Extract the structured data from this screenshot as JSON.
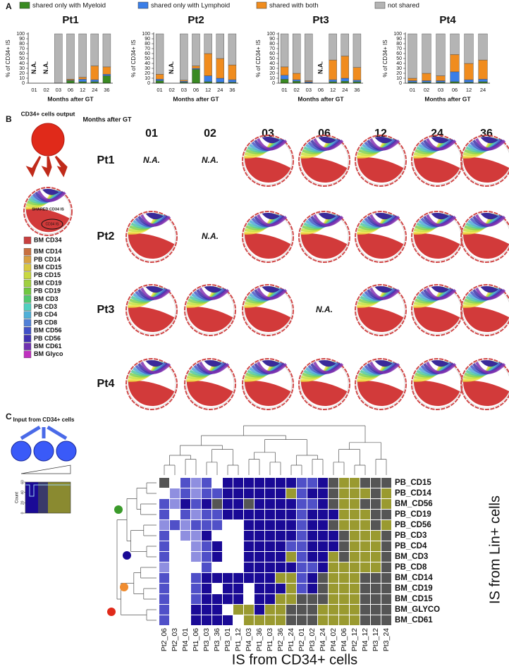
{
  "panel_labels": [
    "A",
    "B",
    "C"
  ],
  "chart_data": [
    {
      "type": "bar",
      "title": "Pt1",
      "ylabel": "% of CD34+ IS",
      "xlabel": "Months after GT",
      "na_label": "N.A.",
      "categories": [
        "01",
        "02",
        "03",
        "06",
        "12",
        "24",
        "36"
      ],
      "ylim": [
        0,
        100
      ],
      "yticks": [
        0,
        10,
        20,
        30,
        40,
        50,
        60,
        70,
        80,
        90,
        100
      ],
      "series": [
        {
          "name": "shared only with Myeloid",
          "color": "#3a8a22",
          "values": [
            null,
            null,
            0,
            5,
            3,
            3,
            15
          ]
        },
        {
          "name": "shared only with Lymphoid",
          "color": "#3a7ee8",
          "values": [
            null,
            null,
            0,
            1,
            5,
            4,
            3
          ]
        },
        {
          "name": "shared with both",
          "color": "#f08c1e",
          "values": [
            null,
            null,
            0,
            2,
            4,
            28,
            15
          ]
        },
        {
          "name": "not shared",
          "color": "#b4b4b4",
          "values": [
            null,
            null,
            100,
            92,
            88,
            65,
            67
          ]
        }
      ]
    },
    {
      "type": "bar",
      "title": "Pt2",
      "ylabel": "% of CD34+ IS",
      "xlabel": "Months after GT",
      "na_label": "N.A.",
      "categories": [
        "01",
        "02",
        "03",
        "06",
        "12",
        "24",
        "36"
      ],
      "ylim": [
        0,
        100
      ],
      "yticks": [
        0,
        10,
        20,
        30,
        40,
        50,
        60,
        70,
        80,
        90,
        100
      ],
      "series": [
        {
          "name": "shared only with Myeloid",
          "color": "#3a8a22",
          "values": [
            5,
            null,
            2,
            28,
            3,
            2,
            2
          ]
        },
        {
          "name": "shared only with Lymphoid",
          "color": "#3a7ee8",
          "values": [
            3,
            null,
            2,
            2,
            12,
            8,
            5
          ]
        },
        {
          "name": "shared with both",
          "color": "#f08c1e",
          "values": [
            10,
            null,
            2,
            5,
            45,
            40,
            30
          ]
        },
        {
          "name": "not shared",
          "color": "#b4b4b4",
          "values": [
            82,
            null,
            94,
            65,
            40,
            50,
            63
          ]
        }
      ]
    },
    {
      "type": "bar",
      "title": "Pt3",
      "ylabel": "% of CD34+ IS",
      "xlabel": "Months after GT",
      "na_label": "N.A.",
      "categories": [
        "01",
        "02",
        "03",
        "06",
        "12",
        "24",
        "36"
      ],
      "ylim": [
        0,
        100
      ],
      "yticks": [
        0,
        10,
        20,
        30,
        40,
        50,
        60,
        70,
        80,
        90,
        100
      ],
      "series": [
        {
          "name": "shared only with Myeloid",
          "color": "#3a8a22",
          "values": [
            8,
            4,
            1,
            null,
            3,
            4,
            3
          ]
        },
        {
          "name": "shared only with Lymphoid",
          "color": "#3a7ee8",
          "values": [
            8,
            3,
            2,
            null,
            4,
            6,
            3
          ]
        },
        {
          "name": "shared with both",
          "color": "#f08c1e",
          "values": [
            17,
            13,
            2,
            null,
            40,
            45,
            26
          ]
        },
        {
          "name": "not shared",
          "color": "#b4b4b4",
          "values": [
            67,
            80,
            95,
            null,
            53,
            45,
            68
          ]
        }
      ]
    },
    {
      "type": "bar",
      "title": "Pt4",
      "ylabel": "% of CD34+ IS",
      "xlabel": "Months after GT",
      "na_label": "N.A.",
      "categories": [
        "01",
        "02",
        "03",
        "06",
        "12",
        "24"
      ],
      "ylim": [
        0,
        100
      ],
      "yticks": [
        0,
        10,
        20,
        30,
        40,
        50,
        60,
        70,
        80,
        90,
        100
      ],
      "series": [
        {
          "name": "shared only with Myeloid",
          "color": "#3a8a22",
          "values": [
            2,
            2,
            2,
            3,
            2,
            3
          ]
        },
        {
          "name": "shared only with Lymphoid",
          "color": "#3a7ee8",
          "values": [
            3,
            3,
            3,
            20,
            5,
            5
          ]
        },
        {
          "name": "shared with both",
          "color": "#f08c1e",
          "values": [
            5,
            15,
            10,
            35,
            33,
            39
          ]
        },
        {
          "name": "not shared",
          "color": "#b4b4b4",
          "values": [
            90,
            80,
            85,
            42,
            60,
            53
          ]
        }
      ]
    },
    {
      "type": "heatmap",
      "xlabel": "IS from CD34+ cells",
      "ylabel": "IS from Lin+ cells",
      "x": [
        "Pt2_06",
        "Pt2_03",
        "Pt4_01",
        "Pt1_06",
        "Pt3_03",
        "Pt3_36",
        "Pt3_01",
        "Pt1_12",
        "Pt4_03",
        "Pt1_36",
        "Pt1_03",
        "Pt2_36",
        "Pt1_24",
        "Pt2_01",
        "Pt3_02",
        "Pt4_24",
        "Pt4_02",
        "Pt4_06",
        "Pt2_12",
        "Pt4_12",
        "Pt3_12",
        "Pt3_24"
      ],
      "y": [
        {
          "label": "PB_CD15",
          "color": "#4a8a1a"
        },
        {
          "label": "PB_CD14",
          "color": "#4a8a1a"
        },
        {
          "label": "BM_CD56",
          "color": "#4a8a1a"
        },
        {
          "label": "PB_CD19",
          "color": "#4a8a1a"
        },
        {
          "label": "PB_CD56",
          "color": "#4a8a1a"
        },
        {
          "label": "PB_CD3",
          "color": "#2a1a9a"
        },
        {
          "label": "PB_CD4",
          "color": "#2a1a9a"
        },
        {
          "label": "BM_CD3",
          "color": "#2a1a9a"
        },
        {
          "label": "PB_CD8",
          "color": "#2a1a9a"
        },
        {
          "label": "BM_CD14",
          "color": "#e07a20"
        },
        {
          "label": "BM_CD19",
          "color": "#e07a20"
        },
        {
          "label": "BM_CD15",
          "color": "#e07a20"
        },
        {
          "label": "BM_GLYCO",
          "color": "#d02020"
        },
        {
          "label": "BM_CD61",
          "color": "#d02020"
        }
      ],
      "palette": [
        "#ffffff",
        "#8f8fe0",
        "#5050c8",
        "#1a0a96",
        "#555555",
        "#9a9a30"
      ],
      "values": [
        [
          4,
          0,
          2,
          1,
          2,
          0,
          3,
          3,
          3,
          3,
          3,
          3,
          3,
          2,
          2,
          3,
          4,
          5,
          5,
          4,
          4,
          4
        ],
        [
          0,
          1,
          2,
          1,
          2,
          2,
          3,
          3,
          3,
          3,
          3,
          3,
          5,
          2,
          3,
          3,
          4,
          5,
          5,
          5,
          4,
          5
        ],
        [
          2,
          1,
          3,
          2,
          3,
          4,
          3,
          3,
          4,
          3,
          3,
          3,
          3,
          2,
          2,
          3,
          4,
          5,
          5,
          4,
          4,
          5
        ],
        [
          2,
          0,
          2,
          1,
          2,
          2,
          3,
          3,
          3,
          3,
          3,
          3,
          3,
          2,
          3,
          3,
          3,
          5,
          5,
          5,
          4,
          4
        ],
        [
          1,
          2,
          1,
          2,
          2,
          2,
          0,
          0,
          3,
          3,
          3,
          3,
          3,
          2,
          3,
          3,
          4,
          5,
          5,
          5,
          4,
          5
        ],
        [
          2,
          0,
          1,
          1,
          3,
          0,
          0,
          0,
          3,
          3,
          3,
          3,
          3,
          2,
          3,
          3,
          3,
          4,
          5,
          5,
          5,
          4
        ],
        [
          2,
          0,
          0,
          1,
          2,
          3,
          0,
          0,
          3,
          3,
          3,
          3,
          2,
          2,
          3,
          3,
          3,
          4,
          5,
          5,
          5,
          4
        ],
        [
          2,
          0,
          0,
          1,
          2,
          3,
          0,
          0,
          3,
          3,
          3,
          3,
          5,
          2,
          3,
          3,
          5,
          4,
          5,
          5,
          5,
          4
        ],
        [
          1,
          0,
          0,
          0,
          2,
          0,
          0,
          0,
          3,
          3,
          3,
          3,
          3,
          2,
          2,
          3,
          5,
          5,
          5,
          5,
          5,
          4
        ],
        [
          2,
          0,
          0,
          2,
          3,
          3,
          3,
          3,
          3,
          3,
          3,
          5,
          5,
          2,
          3,
          4,
          5,
          5,
          5,
          4,
          4,
          4
        ],
        [
          2,
          0,
          0,
          2,
          3,
          0,
          3,
          3,
          0,
          3,
          3,
          3,
          5,
          2,
          3,
          4,
          5,
          5,
          5,
          4,
          4,
          4
        ],
        [
          2,
          0,
          0,
          2,
          3,
          3,
          3,
          3,
          0,
          3,
          3,
          5,
          5,
          4,
          4,
          4,
          5,
          5,
          5,
          4,
          4,
          4
        ],
        [
          2,
          0,
          0,
          3,
          3,
          3,
          0,
          5,
          5,
          3,
          5,
          5,
          4,
          4,
          4,
          5,
          5,
          5,
          5,
          4,
          4,
          4
        ],
        [
          2,
          0,
          0,
          3,
          3,
          3,
          3,
          0,
          5,
          5,
          5,
          5,
          4,
          4,
          4,
          5,
          5,
          5,
          5,
          4,
          4,
          4
        ]
      ],
      "inset": {
        "title": "Input from CD34+ cells",
        "ylabel": "Count",
        "ylim": [
          0,
          60
        ],
        "yticks": [
          0,
          20,
          40,
          60
        ]
      }
    }
  ],
  "panel_b": {
    "output_title": "CD34+ cells output",
    "shared_label": "SHARED CD34 IS",
    "cd34_label": "CD34 IS",
    "col_header": "Months after GT",
    "columns": [
      "01",
      "02",
      "03",
      "06",
      "12",
      "24",
      "36"
    ],
    "rows": [
      {
        "label": "Pt1",
        "cells": [
          "N.A.",
          "N.A.",
          null,
          null,
          null,
          null,
          null
        ]
      },
      {
        "label": "Pt2",
        "cells": [
          null,
          "N.A.",
          null,
          null,
          null,
          null,
          null
        ]
      },
      {
        "label": "Pt3",
        "cells": [
          null,
          null,
          null,
          "N.A.",
          null,
          null,
          null
        ]
      },
      {
        "label": "Pt4",
        "cells": [
          null,
          null,
          null,
          null,
          null,
          null,
          null
        ]
      }
    ],
    "legend": [
      {
        "name": "BM CD34",
        "color": "#c84040"
      },
      {
        "name": "BM CD14",
        "color": "#c87040"
      },
      {
        "name": "PB CD14",
        "color": "#d8a040"
      },
      {
        "name": "BM CD15",
        "color": "#d8c840"
      },
      {
        "name": "PB CD15",
        "color": "#c8d840"
      },
      {
        "name": "BM CD19",
        "color": "#a0d040"
      },
      {
        "name": "PB CD19",
        "color": "#70c840"
      },
      {
        "name": "BM CD3",
        "color": "#50c870"
      },
      {
        "name": "PB CD3",
        "color": "#50d0c0"
      },
      {
        "name": "PB CD4",
        "color": "#50b0d8"
      },
      {
        "name": "PB CD8",
        "color": "#5080d8"
      },
      {
        "name": "BM CD56",
        "color": "#4050c8"
      },
      {
        "name": "PB CD56",
        "color": "#4030b0"
      },
      {
        "name": "BM CD61",
        "color": "#7030b0"
      },
      {
        "name": "BM Glyco",
        "color": "#c030c0"
      }
    ]
  }
}
